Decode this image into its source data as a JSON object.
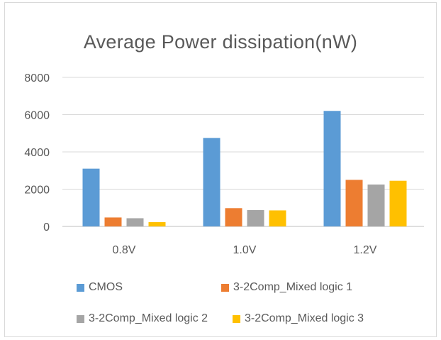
{
  "chart_data": {
    "type": "bar",
    "title": "Average Power dissipation(nW)",
    "categories": [
      "0.8V",
      "1.0V",
      "1.2V"
    ],
    "series": [
      {
        "name": "CMOS",
        "values": [
          3100,
          4750,
          6200
        ],
        "color": "#5b9bd5"
      },
      {
        "name": "3-2Comp_Mixed logic 1",
        "values": [
          480,
          980,
          2500
        ],
        "color": "#ed7d31"
      },
      {
        "name": "3-2Comp_Mixed logic 2",
        "values": [
          440,
          880,
          2250
        ],
        "color": "#a5a5a5"
      },
      {
        "name": "3-2Comp_Mixed logic 3",
        "values": [
          230,
          860,
          2450
        ],
        "color": "#ffc000"
      }
    ],
    "ylim": [
      0,
      8000
    ],
    "yticks": [
      "0",
      "2000",
      "4000",
      "6000",
      "8000"
    ],
    "grid": true,
    "legend_position": "bottom"
  }
}
